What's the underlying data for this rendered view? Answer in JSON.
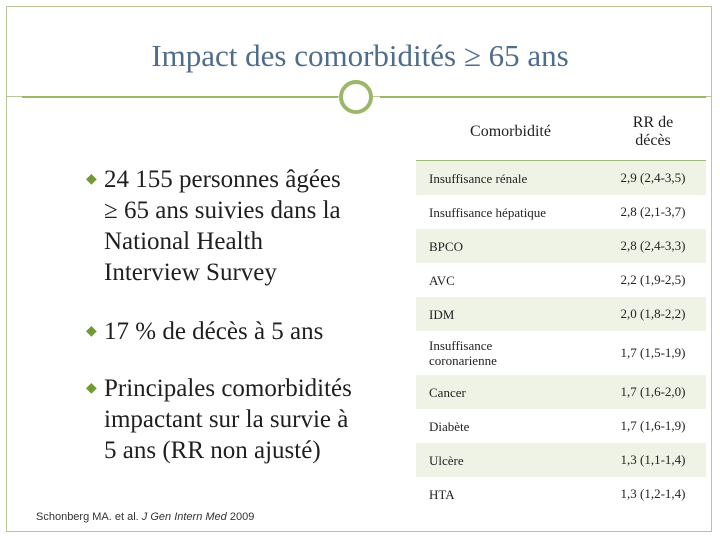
{
  "title": "Impact des comorbidités ≥ 65 ans",
  "bullets": [
    {
      "lines": [
        "24 155 personnes âgées",
        "≥ 65 ans suivies dans la",
        "National Health",
        "Interview Survey"
      ]
    },
    {
      "lines": [
        "17 % de décès à 5 ans"
      ]
    },
    {
      "lines": [
        "Principales comorbidités",
        "impactant sur la survie à",
        "5 ans (RR non ajusté)"
      ]
    }
  ],
  "table": {
    "header": {
      "col1": "Comorbidité",
      "col2_line1": "RR de",
      "col2_line2": "décès"
    },
    "rows": [
      {
        "name_l1": "Insuffisance rénale",
        "name_l2": "",
        "rr": "2,9 (2,4-3,5)"
      },
      {
        "name_l1": "Insuffisance hépatique",
        "name_l2": "",
        "rr": "2,8 (2,1-3,7)"
      },
      {
        "name_l1": "BPCO",
        "name_l2": "",
        "rr": "2,8 (2,4-3,3)"
      },
      {
        "name_l1": "AVC",
        "name_l2": "",
        "rr": "2,2 (1,9-2,5)"
      },
      {
        "name_l1": "IDM",
        "name_l2": "",
        "rr": "2,0 (1,8-2,2)"
      },
      {
        "name_l1": "Insuffisance",
        "name_l2": "coronarienne",
        "rr": "1,7 (1,5-1,9)"
      },
      {
        "name_l1": "Cancer",
        "name_l2": "",
        "rr": "1,7 (1,6-2,0)"
      },
      {
        "name_l1": "Diabète",
        "name_l2": "",
        "rr": "1,7 (1,6-1,9)"
      },
      {
        "name_l1": "Ulcère",
        "name_l2": "",
        "rr": "1,3 (1,1-1,4)"
      },
      {
        "name_l1": "HTA",
        "name_l2": "",
        "rr": "1,3 (1,2-1,4)"
      }
    ]
  },
  "source": {
    "authors": "Schonberg MA. et al.",
    "journal": "J Gen Intern Med",
    "year": "2009"
  },
  "colors": {
    "title": "#4f6d8a",
    "accent": "#9bb86a",
    "row_shade": "#eef3e6"
  },
  "icons": {
    "bullet": "bullet-icon"
  }
}
